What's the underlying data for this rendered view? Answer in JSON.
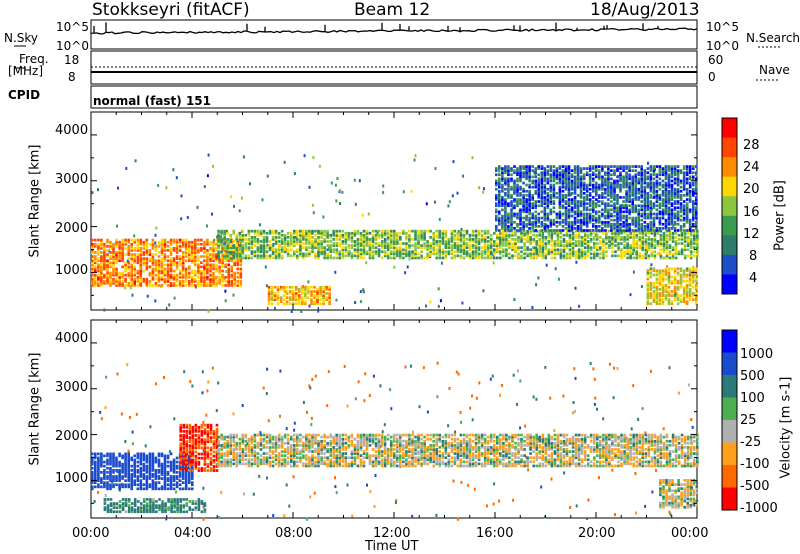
{
  "header": {
    "station": "Stokkseyri (fitACF)",
    "beam": "Beam 12",
    "date": "18/Aug/2013"
  },
  "top_panels": {
    "nsky_label": "N.Sky",
    "nsearch_label": "N.Search",
    "freq_label_1": "Freq.",
    "freq_label_2": "[MHz]",
    "nave_label": "Nave",
    "cpid_label": "CPID",
    "cpid_value": "normal (fast) 151",
    "noise_ticks_left": [
      "10^5",
      "10^0"
    ],
    "noise_ticks_right": [
      "10^5",
      "10^0"
    ],
    "freq_ticks": [
      "18",
      "8"
    ],
    "nave_ticks": [
      "60",
      "0"
    ]
  },
  "chart_data": [
    {
      "type": "heatmap",
      "title": "",
      "ylabel": "Slant Range [km]",
      "xlabel": "",
      "x_range": [
        "00:00",
        "00:00"
      ],
      "y_range": [
        180,
        4500
      ],
      "y_ticks": [
        "4000",
        "3000",
        "2000",
        "1000"
      ],
      "colorbar": {
        "label": "Power [dB]",
        "ticks": [
          "28",
          "24",
          "20",
          "16",
          "12",
          "8",
          "4"
        ],
        "range": [
          0,
          30
        ]
      },
      "features": [
        {
          "x_h": [
            0,
            6
          ],
          "range_km": [
            700,
            1700
          ],
          "value": 22
        },
        {
          "x_h": [
            5,
            24
          ],
          "range_km": [
            1300,
            1900
          ],
          "value": 14
        },
        {
          "x_h": [
            7,
            9.5
          ],
          "range_km": [
            300,
            700
          ],
          "value": 20
        },
        {
          "x_h": [
            22,
            24
          ],
          "range_km": [
            300,
            1100
          ],
          "value": 18
        },
        {
          "x_h": [
            16,
            24
          ],
          "range_km": [
            1900,
            3300
          ],
          "value": 6
        }
      ]
    },
    {
      "type": "heatmap",
      "title": "",
      "ylabel": "Slant Range [km]",
      "xlabel": "Time UT",
      "x_ticks": [
        "00:00",
        "04:00",
        "08:00",
        "12:00",
        "16:00",
        "20:00",
        "00:00"
      ],
      "y_range": [
        180,
        4500
      ],
      "y_ticks": [
        "4000",
        "3000",
        "2000",
        "1000"
      ],
      "colorbar": {
        "label": "Velocity [m s-1]",
        "ticks": [
          "1000",
          "500",
          "100",
          "25",
          "-25",
          "-100",
          "-500",
          "-1000"
        ]
      },
      "features": [
        {
          "x_h": [
            0,
            4
          ],
          "range_km": [
            800,
            1600
          ],
          "value": 500
        },
        {
          "x_h": [
            3.5,
            5
          ],
          "range_km": [
            1200,
            2200
          ],
          "value": -500
        },
        {
          "x_h": [
            5,
            24
          ],
          "range_km": [
            1300,
            2000
          ],
          "value": 0
        },
        {
          "x_h": [
            0.5,
            4.5
          ],
          "range_km": [
            300,
            600
          ],
          "value": 100
        },
        {
          "x_h": [
            22.5,
            24
          ],
          "range_km": [
            400,
            1000
          ],
          "value": 0
        }
      ]
    }
  ],
  "colors": {
    "power": [
      "#0000ff",
      "#1f4fc8",
      "#2e7d6b",
      "#3a9a4e",
      "#8cc63f",
      "#ffd700",
      "#ff8c00",
      "#ff4500",
      "#ff0000"
    ],
    "velocity": [
      "#0000ff",
      "#1a4bcd",
      "#2a7a7a",
      "#4caf50",
      "#b0b0b0",
      "#ff9f1a",
      "#ff6a00",
      "#ff0000"
    ]
  }
}
